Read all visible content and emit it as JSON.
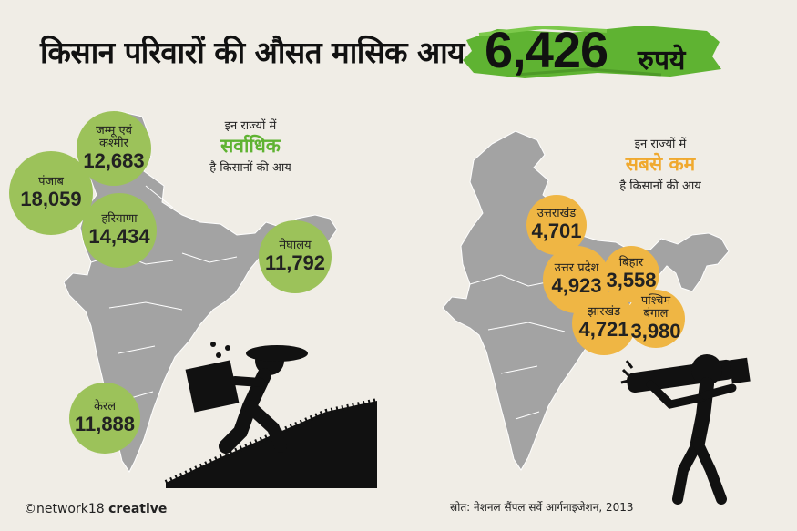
{
  "header": {
    "title": "किसान परिवारों की औसत मासिक आय",
    "amount": "6,426",
    "currency": "रुपये",
    "highlight_color": "#5fb332"
  },
  "highest": {
    "caption_line1": "इन राज्यों में",
    "caption_line2": "सर्वाधिक",
    "caption_line3": "है किसानों की आय",
    "accent_color": "#5fb332",
    "states": [
      {
        "name": "जम्मू एवं कश्मीर",
        "value": "12,683"
      },
      {
        "name": "पंजाब",
        "value": "18,059"
      },
      {
        "name": "हरियाणा",
        "value": "14,434"
      },
      {
        "name": "मेघालय",
        "value": "11,792"
      },
      {
        "name": "केरल",
        "value": "11,888"
      }
    ]
  },
  "lowest": {
    "caption_line1": "इन राज्यों में",
    "caption_line2": "सबसे कम",
    "caption_line3": "है किसानों की आय",
    "accent_color": "#f0a92e",
    "states": [
      {
        "name": "उत्तराखंड",
        "value": "4,701"
      },
      {
        "name": "उत्तर प्रदेश",
        "value": "4,923"
      },
      {
        "name": "बिहार",
        "value": "3,558"
      },
      {
        "name": "झारखंड",
        "value": "4,721"
      },
      {
        "name": "पश्चिम बंगाल",
        "value": "3,980"
      }
    ]
  },
  "footer": {
    "credit_prefix": "©network18",
    "credit_suffix": "creative",
    "source": "स्रोत: नेशनल सैंपल सर्वे आर्गनाइजेशन, 2013"
  }
}
